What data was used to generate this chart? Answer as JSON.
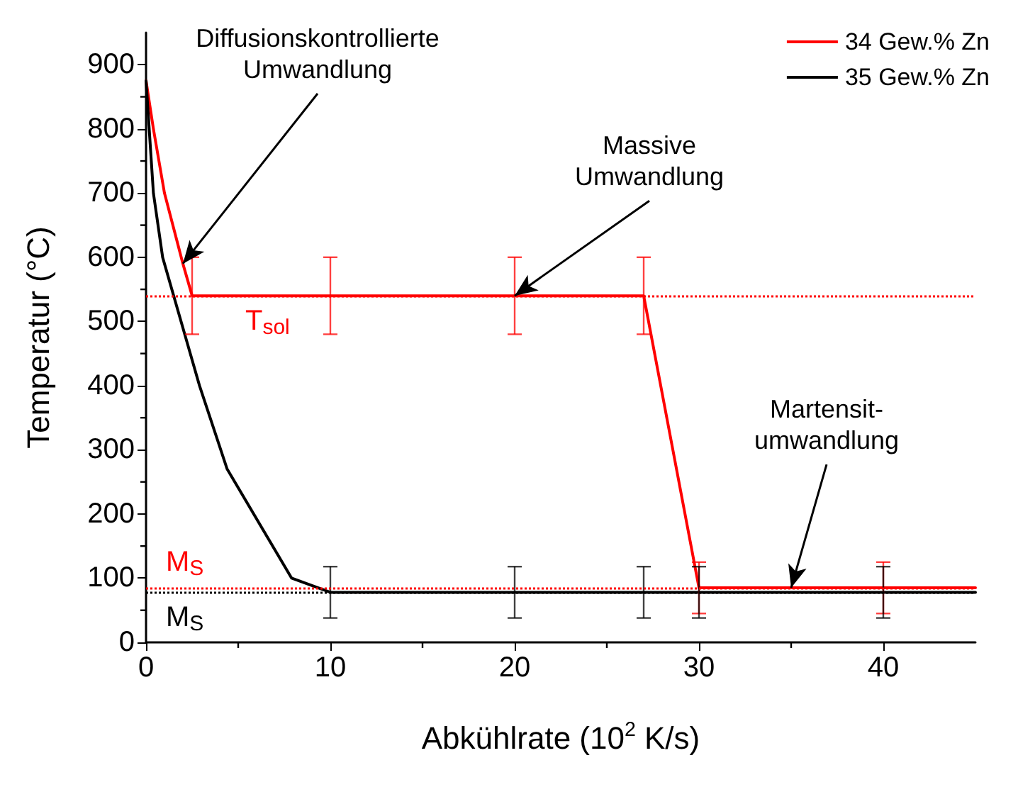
{
  "chart_data": {
    "type": "line",
    "xlabel": "Abkühlrate (10$^{2}$ K/s)",
    "ylabel": "Temperatur (°C)",
    "xlim": [
      0,
      45
    ],
    "xticks": [
      0,
      10,
      20,
      30,
      40
    ],
    "ylim": [
      0,
      950
    ],
    "yticks": [
      0,
      100,
      200,
      300,
      400,
      500,
      600,
      700,
      800,
      900
    ],
    "series": [
      {
        "name": "34 Gew.% Zn",
        "color": "#ff0000",
        "x": [
          0,
          0.4,
          1,
          2,
          2.5,
          10,
          20,
          27,
          30,
          40,
          45
        ],
        "values": [
          875,
          800,
          700,
          590,
          540,
          540,
          540,
          540,
          85,
          85,
          85
        ],
        "errors": [
          null,
          null,
          null,
          null,
          60,
          60,
          60,
          60,
          40,
          40,
          null
        ]
      },
      {
        "name": "35 Gew.% Zn",
        "color": "#000000",
        "x": [
          0,
          0.4,
          0.9,
          2.9,
          4.4,
          7.9,
          10,
          20,
          27,
          30,
          40,
          45
        ],
        "values": [
          875,
          700,
          600,
          400,
          270,
          100,
          78,
          78,
          78,
          78,
          78,
          78
        ],
        "errors": [
          null,
          null,
          null,
          null,
          null,
          null,
          40,
          40,
          40,
          40,
          40,
          null
        ]
      }
    ],
    "ref_lines": [
      {
        "axis": "y",
        "value": 540,
        "label": "T$_{sol}$",
        "color": "#ff0000",
        "line_style": "dotted"
      },
      {
        "axis": "y",
        "value": 85,
        "label": "M$_{S}$",
        "color": "#ff0000",
        "line_style": "dotted"
      },
      {
        "axis": "y",
        "value": 78,
        "label": "M$_{S}$",
        "color": "#000000",
        "line_style": "dotted"
      }
    ],
    "annotations": [
      {
        "text": "Diffusionskontrollierte\nUmwandlung",
        "x": 2,
        "y": 590
      },
      {
        "text": "Massive\nUmwandlung",
        "x": 20,
        "y": 540
      },
      {
        "text": "Martensit-\numwandlung",
        "x": 35,
        "y": 85
      }
    ],
    "legend": "top right",
    "grid": false,
    "marker": "none",
    "line_style": "solid"
  }
}
